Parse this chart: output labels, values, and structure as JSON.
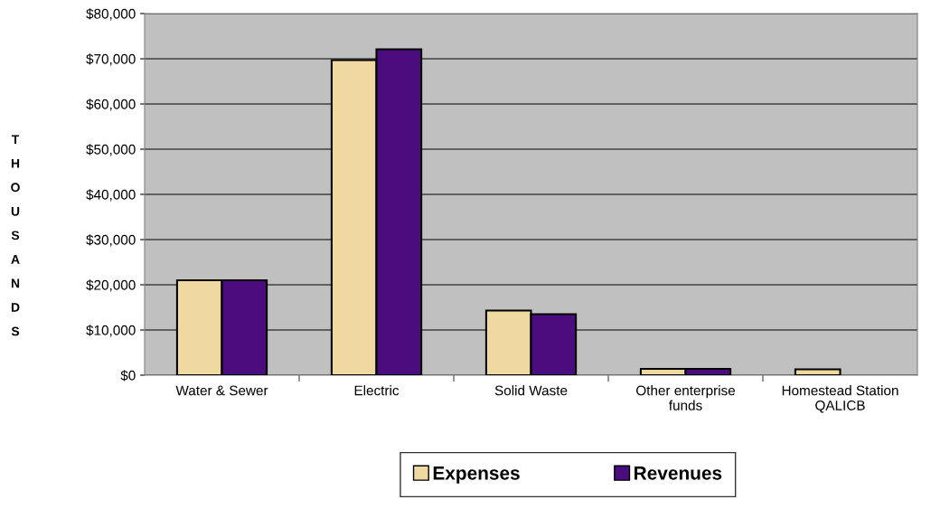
{
  "chart_data": {
    "type": "bar",
    "ylabel": "THOUSANDS",
    "categories": [
      "Water & Sewer",
      "Electric",
      "Solid Waste",
      "Other enterprise\nfunds",
      "Homestead Station\nQALICB"
    ],
    "series": [
      {
        "name": "Expenses",
        "color": "#f0d9a0",
        "values": [
          21000,
          69700,
          14300,
          1400,
          1300
        ]
      },
      {
        "name": "Revenues",
        "color": "#4b0d7e",
        "values": [
          21000,
          72100,
          13500,
          1400,
          null
        ]
      }
    ],
    "ylim": [
      0,
      80000
    ],
    "yticks": [
      {
        "value": 0,
        "label": "$0"
      },
      {
        "value": 10000,
        "label": "$10,000"
      },
      {
        "value": 20000,
        "label": "$20,000"
      },
      {
        "value": 30000,
        "label": "$30,000"
      },
      {
        "value": 40000,
        "label": "$40,000"
      },
      {
        "value": 50000,
        "label": "$50,000"
      },
      {
        "value": 60000,
        "label": "$60,000"
      },
      {
        "value": 70000,
        "label": "$70,000"
      },
      {
        "value": 80000,
        "label": "$80,000"
      }
    ],
    "grid": "y",
    "legend": "bottom"
  }
}
